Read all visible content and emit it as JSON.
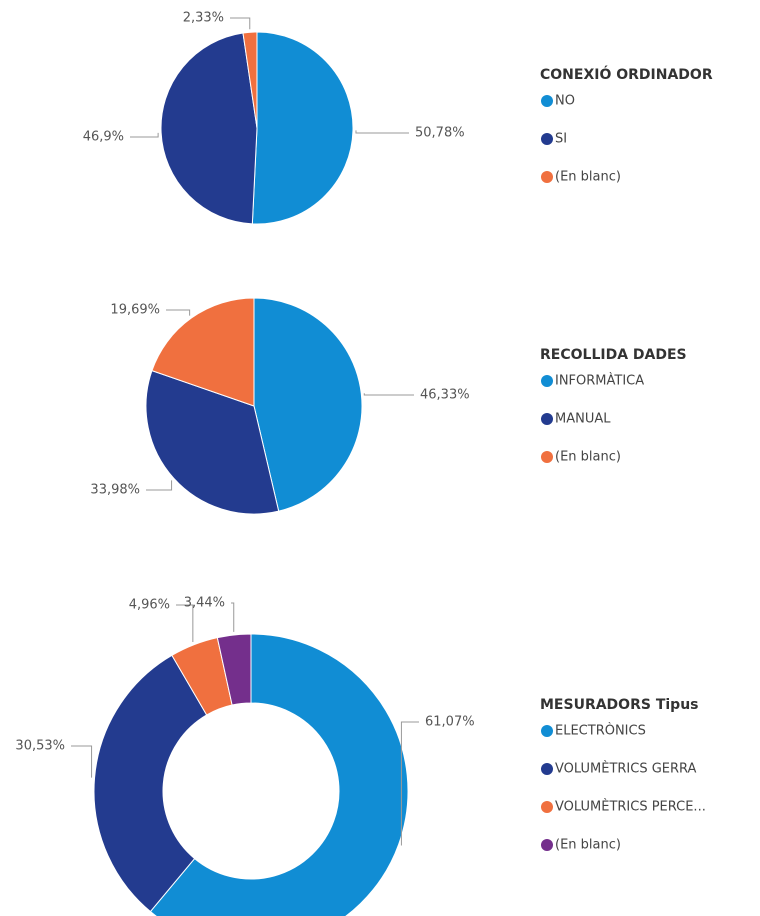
{
  "chart_data": [
    {
      "type": "pie",
      "title": "CONEXIÓ ORDINADOR",
      "categories": [
        "NO",
        "SI",
        "(En blanc)"
      ],
      "values": [
        50.78,
        46.9,
        2.33
      ],
      "value_labels": [
        "50,78%",
        "46,9%",
        "2,33%"
      ],
      "colors": [
        "#118dd4",
        "#233b8f",
        "#f0703f"
      ]
    },
    {
      "type": "pie",
      "title": "RECOLLIDA DADES",
      "categories": [
        "INFORMÀTICA",
        "MANUAL",
        "(En blanc)"
      ],
      "values": [
        46.33,
        33.98,
        19.69
      ],
      "value_labels": [
        "46,33%",
        "33,98%",
        "19,69%"
      ],
      "colors": [
        "#118dd4",
        "#233b8f",
        "#f0703f"
      ]
    },
    {
      "type": "donut",
      "title": "MESURADORS Tipus",
      "categories": [
        "ELECTRÒNICS",
        "VOLUMÈTRICS GERRA",
        "VOLUMÈTRICS PERCE...",
        "(En blanc)"
      ],
      "values": [
        61.07,
        30.53,
        4.96,
        3.44
      ],
      "value_labels": [
        "61,07%",
        "30,53%",
        "4,96%",
        "3,44%"
      ],
      "colors": [
        "#118dd4",
        "#233b8f",
        "#f0703f",
        "#742f8c"
      ]
    }
  ]
}
